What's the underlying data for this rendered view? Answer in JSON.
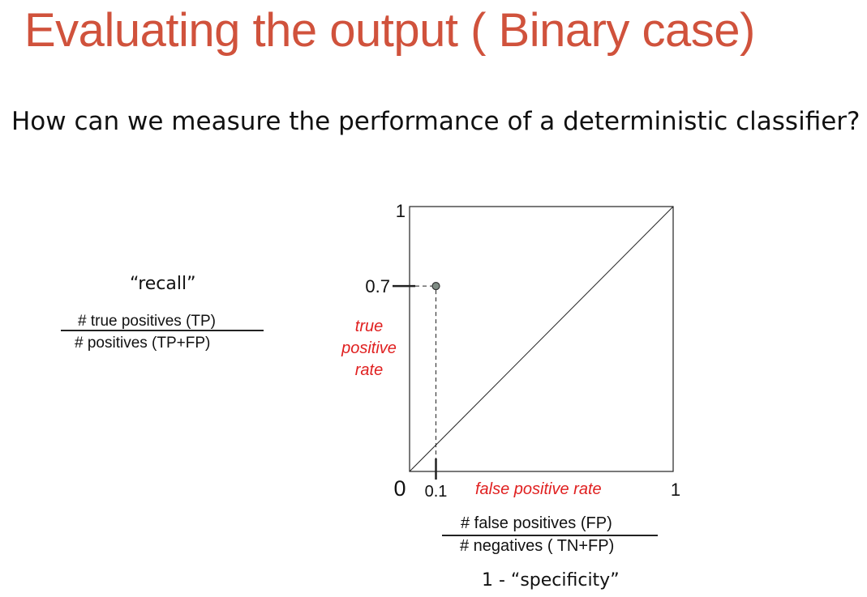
{
  "slide": {
    "title": "Evaluating the output ( Binary case)",
    "subtitle": "How can we measure the performance of a deterministic classifier?"
  },
  "recall": {
    "label": "“recall”",
    "numerator": "# true positives (TP)",
    "denominator": "#  positives (TP+FP)"
  },
  "fpr_formula": {
    "numerator": "# false positives (FP)",
    "denominator": "# negatives ( TN+FP)",
    "note": "1 - “specificity”"
  },
  "chart_data": {
    "type": "scatter",
    "xlabel": "false positive rate",
    "ylabel_lines": [
      "true",
      "positive",
      "rate"
    ],
    "xlim": [
      0,
      1
    ],
    "ylim": [
      0,
      1
    ],
    "x_ticks": [
      "0",
      "0.1",
      "1"
    ],
    "y_ticks": [
      "1",
      "0.7"
    ],
    "origin_label": "0",
    "points": [
      {
        "x": 0.1,
        "y": 0.7
      }
    ],
    "diagonal": [
      [
        0,
        0
      ],
      [
        1,
        1
      ]
    ],
    "grid": false,
    "point_color": "#7f8c84",
    "label_color": "#e02020"
  }
}
